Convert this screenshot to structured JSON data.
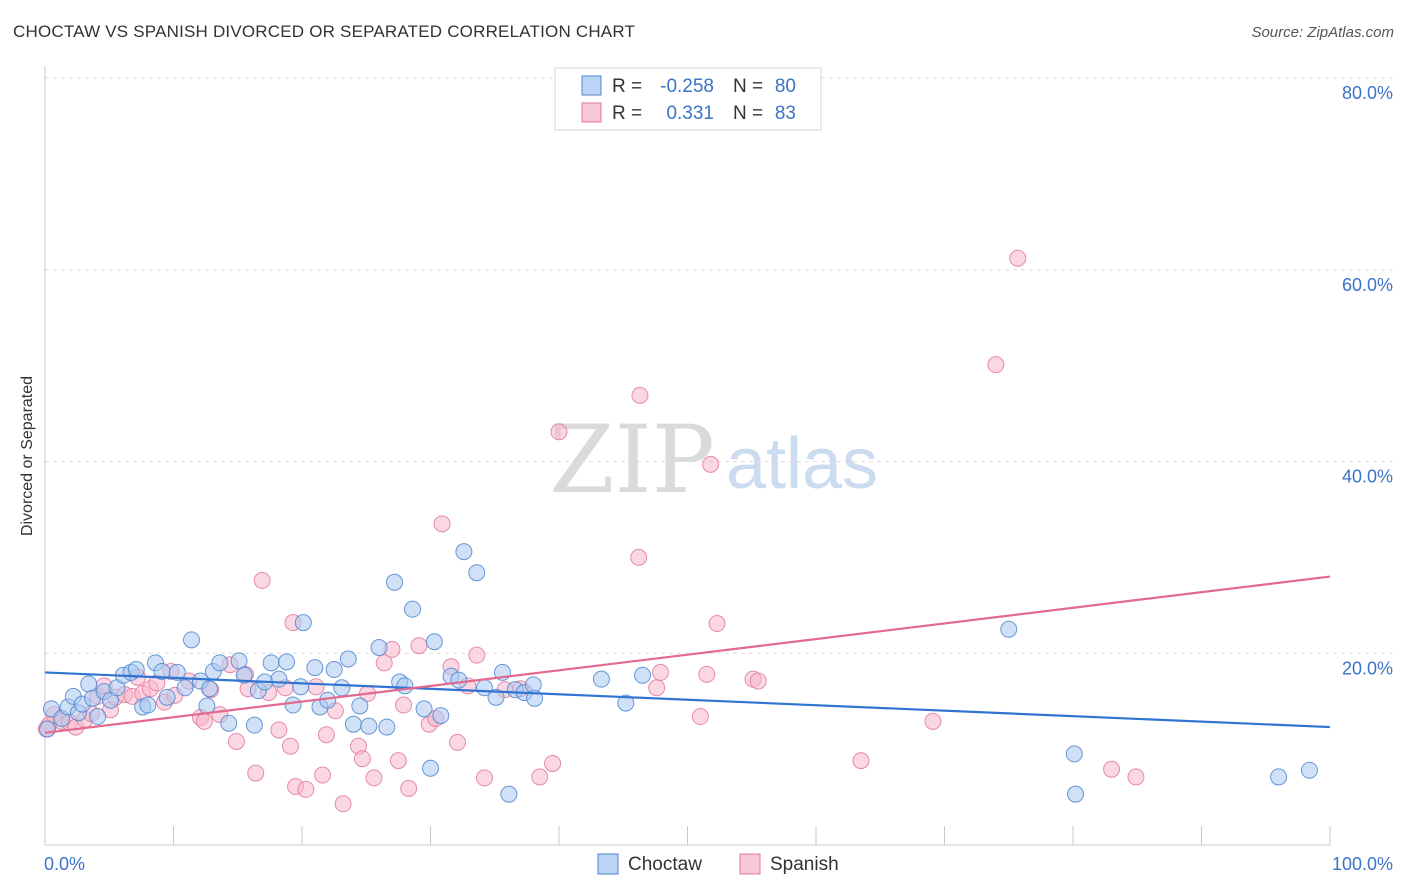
{
  "header": {
    "title": "CHOCTAW VS SPANISH DIVORCED OR SEPARATED CORRELATION CHART",
    "source": "Source: ZipAtlas.com"
  },
  "watermark": {
    "zip": "ZIP",
    "atlas": "atlas"
  },
  "colors": {
    "choctaw_fill": "#a9c8f0",
    "choctaw_stroke": "#4f86d0",
    "choctaw_line": "#2f74d0",
    "spanish_fill": "#f5b7cb",
    "spanish_stroke": "#e27a9c",
    "spanish_line": "#e2698f",
    "axis_text": "#3a73c9",
    "grid": "#dcdcdc"
  },
  "stats": {
    "r_label": "R =",
    "n_label": "N =",
    "rows": [
      {
        "series": "Choctaw",
        "r": "-0.258",
        "n": "80"
      },
      {
        "series": "Spanish",
        "r": "0.331",
        "n": "83"
      }
    ]
  },
  "chart_data": {
    "type": "scatter",
    "title": "CHOCTAW VS SPANISH DIVORCED OR SEPARATED CORRELATION CHART",
    "xlabel": "",
    "ylabel": "Divorced or Separated",
    "xlim": [
      0,
      100
    ],
    "ylim": [
      0,
      80
    ],
    "x_tick_labels": [
      "0.0%",
      "100.0%"
    ],
    "y_ticks": [
      20,
      40,
      60,
      80
    ],
    "y_tick_labels": [
      "20.0%",
      "40.0%",
      "60.0%",
      "80.0%"
    ],
    "grid": "horizontal dashed",
    "legend_position": "bottom-center",
    "series": [
      {
        "name": "Choctaw",
        "trend": {
          "x": [
            0,
            100
          ],
          "y": [
            18.0,
            12.3
          ]
        },
        "points": [
          [
            0.5,
            14.2
          ],
          [
            1.3,
            13.2
          ],
          [
            1.8,
            14.4
          ],
          [
            2.2,
            15.5
          ],
          [
            2.6,
            13.8
          ],
          [
            2.9,
            14.7
          ],
          [
            3.4,
            16.8
          ],
          [
            3.7,
            15.3
          ],
          [
            4.1,
            13.4
          ],
          [
            4.6,
            16.0
          ],
          [
            5.1,
            15.1
          ],
          [
            5.6,
            16.4
          ],
          [
            6.1,
            17.7
          ],
          [
            6.7,
            18.0
          ],
          [
            7.1,
            18.3
          ],
          [
            7.6,
            14.4
          ],
          [
            8.0,
            14.6
          ],
          [
            8.6,
            19.0
          ],
          [
            9.1,
            18.1
          ],
          [
            9.5,
            15.4
          ],
          [
            10.3,
            18.0
          ],
          [
            10.9,
            16.4
          ],
          [
            11.4,
            21.4
          ],
          [
            12.1,
            17.1
          ],
          [
            12.6,
            14.5
          ],
          [
            13.1,
            18.1
          ],
          [
            13.6,
            19.0
          ],
          [
            14.3,
            12.7
          ],
          [
            15.1,
            19.2
          ],
          [
            15.5,
            17.7
          ],
          [
            16.3,
            12.5
          ],
          [
            16.6,
            16.1
          ],
          [
            17.1,
            17.0
          ],
          [
            17.6,
            19.0
          ],
          [
            18.2,
            17.3
          ],
          [
            18.8,
            19.1
          ],
          [
            19.3,
            14.6
          ],
          [
            19.9,
            16.5
          ],
          [
            20.1,
            23.2
          ],
          [
            21.0,
            18.5
          ],
          [
            21.4,
            14.4
          ],
          [
            22.0,
            15.1
          ],
          [
            22.5,
            18.3
          ],
          [
            23.1,
            16.4
          ],
          [
            23.6,
            19.4
          ],
          [
            24.0,
            12.6
          ],
          [
            24.5,
            14.5
          ],
          [
            25.2,
            12.4
          ],
          [
            26.0,
            20.6
          ],
          [
            26.6,
            12.3
          ],
          [
            27.2,
            27.4
          ],
          [
            27.6,
            17.0
          ],
          [
            28.0,
            16.6
          ],
          [
            28.6,
            24.6
          ],
          [
            29.5,
            14.2
          ],
          [
            30.0,
            8.0
          ],
          [
            30.3,
            21.2
          ],
          [
            30.8,
            13.5
          ],
          [
            31.6,
            17.6
          ],
          [
            32.2,
            17.2
          ],
          [
            32.6,
            30.6
          ],
          [
            33.6,
            28.4
          ],
          [
            34.2,
            16.4
          ],
          [
            35.1,
            15.4
          ],
          [
            35.6,
            18.0
          ],
          [
            36.1,
            5.3
          ],
          [
            36.6,
            16.2
          ],
          [
            37.3,
            15.9
          ],
          [
            38.0,
            16.7
          ],
          [
            38.1,
            15.3
          ],
          [
            43.3,
            17.3
          ],
          [
            45.2,
            14.8
          ],
          [
            46.5,
            17.7
          ],
          [
            75.0,
            22.5
          ],
          [
            80.1,
            9.5
          ],
          [
            80.2,
            5.3
          ],
          [
            96.0,
            7.1
          ],
          [
            98.4,
            7.8
          ],
          [
            0.2,
            12.1
          ],
          [
            12.8,
            16.3
          ]
        ]
      },
      {
        "name": "Spanish",
        "trend": {
          "x": [
            0,
            100
          ],
          "y": [
            11.7,
            28.0
          ]
        },
        "points": [
          [
            0.3,
            12.5
          ],
          [
            0.7,
            13.6
          ],
          [
            1.3,
            12.9
          ],
          [
            1.9,
            12.8
          ],
          [
            2.4,
            12.3
          ],
          [
            3.1,
            13.1
          ],
          [
            3.6,
            13.7
          ],
          [
            4.1,
            15.5
          ],
          [
            4.6,
            16.6
          ],
          [
            5.1,
            14.1
          ],
          [
            5.5,
            15.4
          ],
          [
            6.2,
            15.7
          ],
          [
            6.8,
            15.5
          ],
          [
            7.2,
            17.5
          ],
          [
            7.6,
            15.8
          ],
          [
            8.2,
            16.3
          ],
          [
            8.7,
            16.9
          ],
          [
            9.3,
            14.9
          ],
          [
            9.8,
            18.1
          ],
          [
            10.1,
            15.6
          ],
          [
            11.2,
            17.1
          ],
          [
            12.1,
            13.3
          ],
          [
            12.4,
            12.9
          ],
          [
            12.9,
            16.2
          ],
          [
            13.6,
            13.6
          ],
          [
            14.4,
            18.8
          ],
          [
            14.9,
            10.8
          ],
          [
            15.6,
            17.8
          ],
          [
            15.8,
            16.3
          ],
          [
            16.4,
            7.5
          ],
          [
            16.9,
            27.6
          ],
          [
            17.4,
            15.9
          ],
          [
            18.2,
            12.0
          ],
          [
            18.7,
            16.4
          ],
          [
            19.1,
            10.3
          ],
          [
            19.3,
            23.2
          ],
          [
            19.5,
            6.1
          ],
          [
            20.3,
            5.8
          ],
          [
            21.1,
            16.5
          ],
          [
            21.6,
            7.3
          ],
          [
            21.9,
            11.5
          ],
          [
            22.6,
            14.0
          ],
          [
            23.2,
            4.3
          ],
          [
            24.4,
            10.3
          ],
          [
            24.7,
            9.0
          ],
          [
            25.1,
            15.8
          ],
          [
            25.6,
            7.0
          ],
          [
            26.4,
            19.0
          ],
          [
            27.0,
            20.4
          ],
          [
            27.5,
            8.8
          ],
          [
            27.9,
            14.6
          ],
          [
            28.3,
            5.9
          ],
          [
            29.1,
            20.8
          ],
          [
            29.9,
            12.6
          ],
          [
            30.4,
            13.2
          ],
          [
            30.9,
            33.5
          ],
          [
            31.6,
            18.6
          ],
          [
            32.1,
            10.7
          ],
          [
            32.9,
            16.6
          ],
          [
            33.6,
            19.8
          ],
          [
            34.2,
            7.0
          ],
          [
            35.8,
            16.2
          ],
          [
            37.0,
            16.3
          ],
          [
            38.5,
            7.1
          ],
          [
            39.5,
            8.5
          ],
          [
            40.0,
            43.1
          ],
          [
            46.2,
            30.0
          ],
          [
            46.3,
            46.9
          ],
          [
            47.6,
            16.4
          ],
          [
            47.9,
            18.0
          ],
          [
            51.0,
            13.4
          ],
          [
            51.5,
            17.8
          ],
          [
            51.8,
            39.7
          ],
          [
            52.3,
            23.1
          ],
          [
            55.1,
            17.3
          ],
          [
            55.5,
            17.1
          ],
          [
            63.5,
            8.8
          ],
          [
            69.1,
            12.9
          ],
          [
            74.0,
            50.1
          ],
          [
            75.7,
            61.2
          ],
          [
            83.0,
            7.9
          ],
          [
            84.9,
            7.1
          ],
          [
            0.1,
            12.1
          ]
        ]
      }
    ]
  },
  "legend": {
    "items": [
      {
        "label": "Choctaw"
      },
      {
        "label": "Spanish"
      }
    ]
  }
}
